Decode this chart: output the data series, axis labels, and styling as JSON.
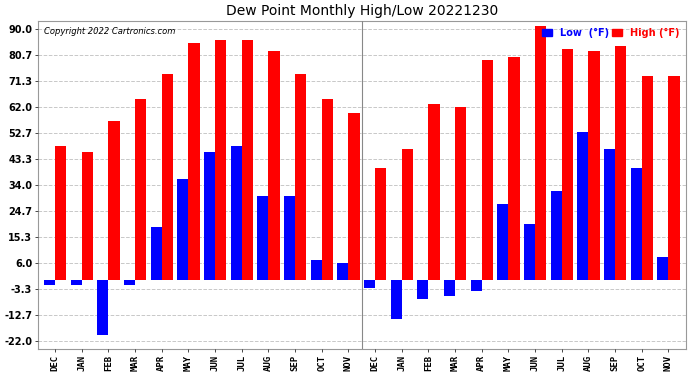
{
  "title": "Dew Point Monthly High/Low 20221230",
  "copyright": "Copyright 2022 Cartronics.com",
  "yticks": [
    90.0,
    80.7,
    71.3,
    62.0,
    52.7,
    43.3,
    34.0,
    24.7,
    15.3,
    6.0,
    -3.3,
    -12.7,
    -22.0
  ],
  "ylim": [
    -25,
    93
  ],
  "months": [
    "DEC",
    "JAN",
    "FEB",
    "MAR",
    "APR",
    "MAY",
    "JUN",
    "JUL",
    "AUG",
    "SEP",
    "OCT",
    "NOV",
    "DEC",
    "JAN",
    "FEB",
    "MAR",
    "APR",
    "MAY",
    "JUN",
    "JUL",
    "AUG",
    "SEP",
    "OCT",
    "NOV"
  ],
  "high": [
    48,
    46,
    57,
    65,
    74,
    85,
    86,
    86,
    82,
    74,
    65,
    60,
    40,
    47,
    63,
    62,
    79,
    80,
    91,
    83,
    82,
    84,
    73,
    73
  ],
  "low": [
    -2,
    -2,
    -20,
    -2,
    19,
    36,
    46,
    48,
    30,
    30,
    7,
    6,
    -3,
    -14,
    -7,
    -6,
    -4,
    27,
    20,
    32,
    53,
    47,
    40,
    8
  ],
  "high_color": "#ff0000",
  "low_color": "#0000ff",
  "bg_color": "#ffffff",
  "grid_color": "#c8c8c8",
  "bar_width": 0.42
}
